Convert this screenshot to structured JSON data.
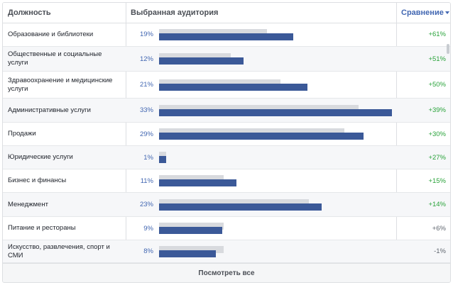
{
  "header": {
    "col_title": "Должность",
    "col_audience": "Выбранная аудитория",
    "col_compare": "Сравнение"
  },
  "rows": [
    {
      "label": "Образование и библиотеки",
      "pct": "19%",
      "value": 19,
      "baseline": 15.3,
      "compare": "+61%",
      "compare_color": "#2aa33b"
    },
    {
      "label": "Общественные и социальные услуги",
      "pct": "12%",
      "value": 12,
      "baseline": 10.2,
      "compare": "+51%",
      "compare_color": "#2aa33b"
    },
    {
      "label": "Здравоохранение и медицинские услуги",
      "pct": "21%",
      "value": 21,
      "baseline": 17.2,
      "compare": "+50%",
      "compare_color": "#2aa33b"
    },
    {
      "label": "Административные услуги",
      "pct": "33%",
      "value": 33,
      "baseline": 28.3,
      "compare": "+39%",
      "compare_color": "#2aa33b"
    },
    {
      "label": "Продажи",
      "pct": "29%",
      "value": 29,
      "baseline": 26.3,
      "compare": "+30%",
      "compare_color": "#2aa33b"
    },
    {
      "label": "Юридические услуги",
      "pct": "1%",
      "value": 1,
      "baseline": 1,
      "compare": "+27%",
      "compare_color": "#2aa33b"
    },
    {
      "label": "Бизнес и финансы",
      "pct": "11%",
      "value": 11,
      "baseline": 9.2,
      "compare": "+15%",
      "compare_color": "#2aa33b"
    },
    {
      "label": "Менеджмент",
      "pct": "23%",
      "value": 23,
      "baseline": 21.2,
      "compare": "+14%",
      "compare_color": "#2aa33b"
    },
    {
      "label": "Питание и рестораны",
      "pct": "9%",
      "value": 9,
      "baseline": 9.2,
      "compare": "+6%",
      "compare_color": "#606770"
    },
    {
      "label": "Искусство, развлечения, спорт и СМИ",
      "pct": "8%",
      "value": 8,
      "baseline": 9.2,
      "compare": "-1%",
      "compare_color": "#606770"
    }
  ],
  "footer": {
    "see_all": "Посмотреть все"
  },
  "colors": {
    "bar": "#3b5998",
    "baseline_bar": "#d8dade",
    "positive": "#2aa33b",
    "neutral": "#606770",
    "link": "#4267b2"
  },
  "bar_scale_max": 33
}
